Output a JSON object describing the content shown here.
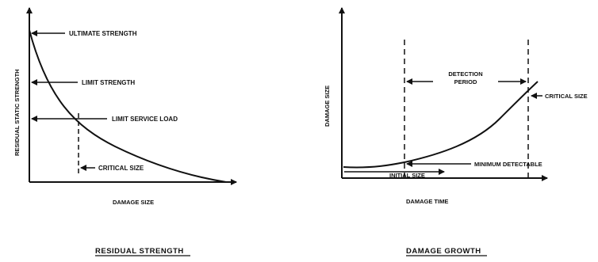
{
  "left_diagram": {
    "y_axis_label": "RESIDUAL STATIC STRENGTH",
    "x_axis_label": "DAMAGE SIZE",
    "ultimate_strength": "ULTIMATE STRENGTH",
    "limit_strength": "LIMIT STRENGTH",
    "limit_service_load": "LIMIT SERVICE LOAD",
    "critical_size": "CRITICAL SIZE",
    "caption": "RESIDUAL STRENGTH"
  },
  "right_diagram": {
    "y_axis_label": "DAMAGE SIZE",
    "x_axis_label": "DAMAGE TIME",
    "detection_period_line1": "DETECTION",
    "detection_period_line2": "PERIOD",
    "critical_size": "CRITICAL SIZE",
    "minimum_detectable": "MINIMUM DETECTABLE",
    "initial_size": "INITIAL SIZE",
    "caption": "DAMAGE GROWTH"
  },
  "colors": {
    "ink": "#111111",
    "background": "#ffffff"
  }
}
